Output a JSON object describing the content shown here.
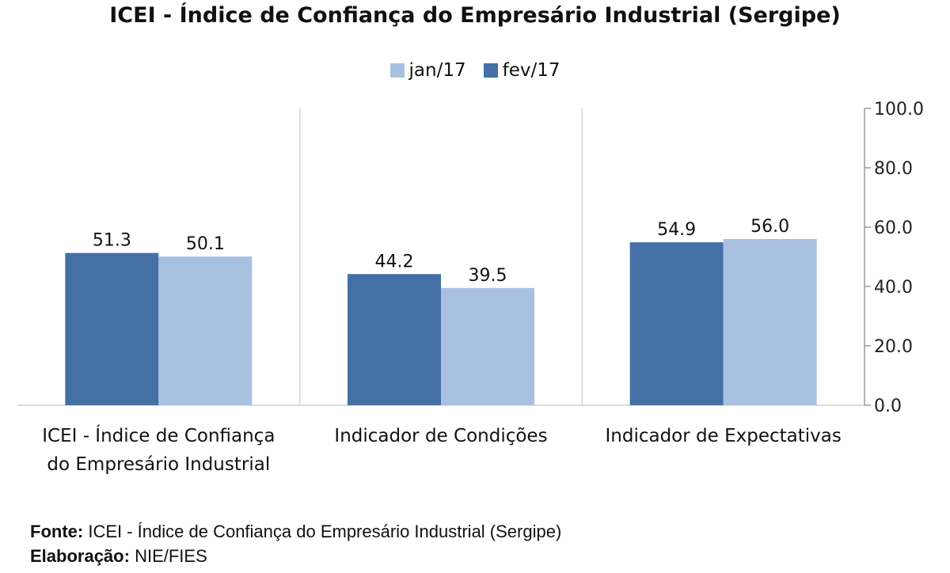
{
  "chart_data": {
    "type": "bar",
    "title": "ICEI - Índice de Confiança do Empresário Industrial (Sergipe)",
    "categories": [
      [
        "ICEI - Índice de Confiança",
        "do Empresário Industrial"
      ],
      [
        "Indicador de Condições"
      ],
      [
        "Indicador de Expectativas"
      ]
    ],
    "series": [
      {
        "name": "jan/17",
        "color": "#a9c1e1",
        "values": [
          50.1,
          39.5,
          56.0
        ]
      },
      {
        "name": "fev/17",
        "color": "#4470a6",
        "values": [
          51.3,
          44.2,
          54.9
        ]
      }
    ],
    "bar_order": [
      [
        "fev/17",
        "jan/17"
      ],
      [
        "fev/17",
        "jan/17"
      ],
      [
        "fev/17",
        "jan/17"
      ]
    ],
    "ylim": [
      0,
      100
    ],
    "yticks": [
      "0.0",
      "20.0",
      "40.0",
      "60.0",
      "80.0",
      "100.0"
    ],
    "y_axis_position": "right",
    "legend_position": "top",
    "xlabel": "",
    "ylabel": ""
  },
  "footer": {
    "source_label": "Fonte:",
    "source_text": "ICEI - Índice de Confiança do Empresário Industrial (Sergipe)",
    "elab_label": "Elaboração:",
    "elab_text": "NIE/FIES"
  }
}
